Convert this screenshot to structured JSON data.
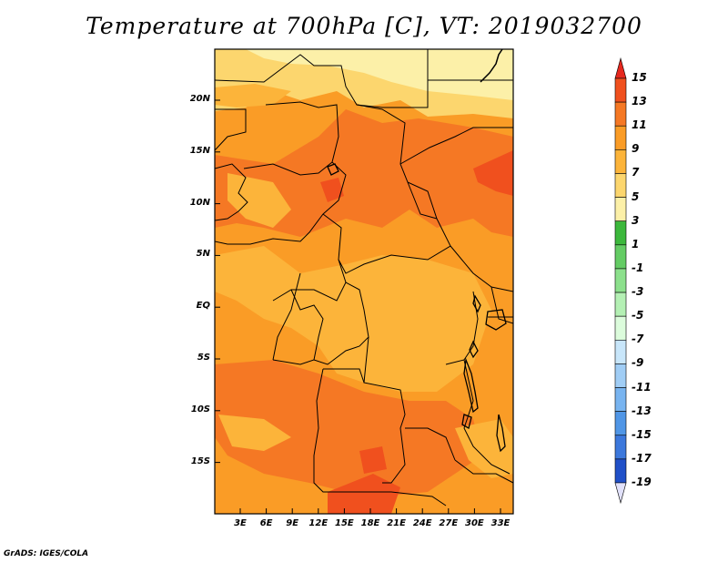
{
  "title": "Temperature at 700hPa [C], VT: 2019032700",
  "credit": "GrADS: IGES/COLA",
  "map": {
    "variable": "Temperature at 700hPa",
    "units": "C",
    "valid_time": "2019032700",
    "lat_ticks": [
      "20N",
      "15N",
      "10N",
      "5N",
      "EQ",
      "5S",
      "10S",
      "15S"
    ],
    "lon_ticks": [
      "3E",
      "6E",
      "9E",
      "12E",
      "15E",
      "18E",
      "21E",
      "24E",
      "27E",
      "30E",
      "33E"
    ],
    "boundary_color": "#000000"
  },
  "colorbar": {
    "levels": [
      "15",
      "13",
      "11",
      "9",
      "7",
      "5",
      "3",
      "1",
      "-1",
      "-3",
      "-5",
      "-7",
      "-9",
      "-11",
      "-13",
      "-15",
      "-17",
      "-19"
    ],
    "colors": [
      "#e6281e",
      "#f0501e",
      "#f57824",
      "#fa9c26",
      "#fcb43a",
      "#fcd66e",
      "#fcf0a8",
      "#3cb83c",
      "#64cc64",
      "#8ce08c",
      "#b4f0b4",
      "#dcfcdc",
      "#c8e6fa",
      "#a0cdf5",
      "#78b4f0",
      "#5096e6",
      "#3c78dc",
      "#2050c8",
      "#0a2896",
      "#000a64"
    ],
    "top_arrow_color": "#e6281e",
    "bottom_arrow_color": "#e1e1fa"
  },
  "field_colors": {
    "c5": "#fcf0a8",
    "c7": "#fcd66e",
    "c9": "#fcb43a",
    "c11": "#fa9c26",
    "c13": "#f57824",
    "c15": "#f0501e",
    "c17": "#e6281e"
  }
}
